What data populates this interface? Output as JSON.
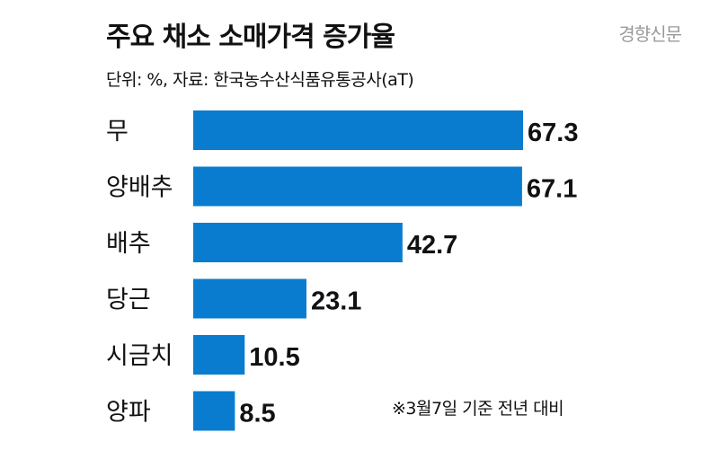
{
  "header": {
    "title": "주요 채소 소매가격 증가율",
    "subtitle": "단위: %, 자료: 한국농수산식품유통공사(aT)",
    "watermark": "경향신문"
  },
  "footer": {
    "note": "※3월7일 기준 전년 대비"
  },
  "colors": {
    "bar": "#0a7ccf",
    "text": "#111111",
    "watermark": "#9a9a9a"
  },
  "chart_data": {
    "type": "bar",
    "orientation": "horizontal",
    "categories": [
      "무",
      "양배추",
      "배추",
      "당근",
      "시금치",
      "양파"
    ],
    "values": [
      67.3,
      67.1,
      42.7,
      23.1,
      10.5,
      8.5
    ],
    "value_labels": [
      "67.3",
      "67.1",
      "42.7",
      "23.1",
      "10.5",
      "8.5"
    ],
    "xlim": [
      0,
      67.3
    ],
    "grid": false,
    "legend": "none"
  }
}
